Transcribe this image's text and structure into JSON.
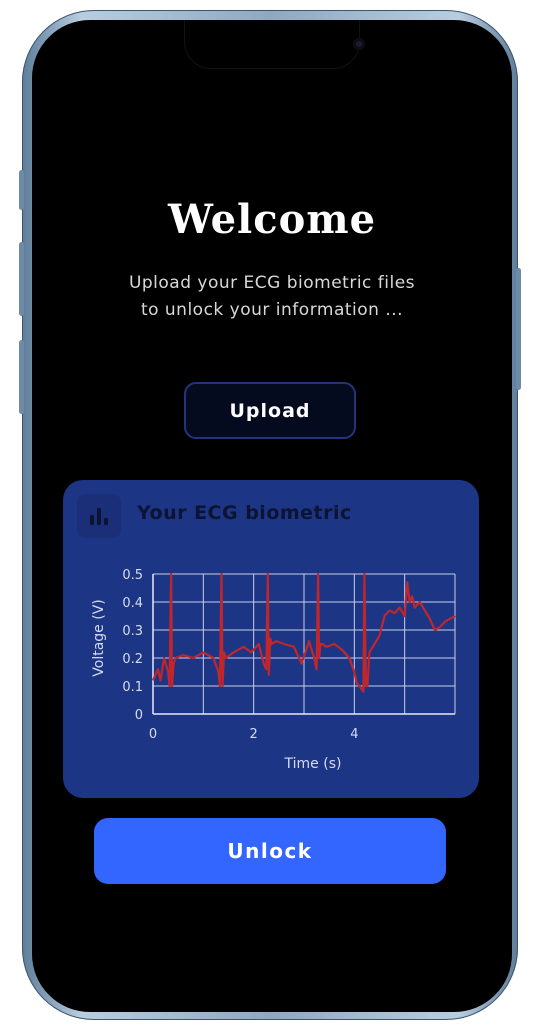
{
  "welcome": {
    "title": "Welcome",
    "subtitle_line1": "Upload your ECG biometric files",
    "subtitle_line2": "to unlock your information ..."
  },
  "buttons": {
    "upload_label": "Upload",
    "unlock_label": "Unlock"
  },
  "card": {
    "title": "Your ECG biometric",
    "icon": "bar-chart-icon"
  },
  "colors": {
    "background": "#000000",
    "card": "#1d3585",
    "unlock_button": "#3366ff",
    "ecg_line": "#c0262c"
  },
  "chart_data": {
    "type": "line",
    "xlabel": "Time (s)",
    "ylabel": "Voltage (V)",
    "xlim": [
      0,
      6
    ],
    "ylim": [
      0,
      0.5
    ],
    "xticks": [
      "0",
      "2",
      "4"
    ],
    "yticks": [
      "0",
      "0.1",
      "0.2",
      "0.3",
      "0.4",
      "0.5"
    ],
    "grid": true,
    "series": [
      {
        "x": [
          0,
          0.1,
          0.15,
          0.22,
          0.3,
          0.33,
          0.36,
          0.38,
          0.41,
          0.45,
          0.6,
          0.8,
          1.0,
          1.2,
          1.3,
          1.33,
          1.36,
          1.38,
          1.41,
          1.45,
          1.6,
          1.8,
          1.95,
          2.1,
          2.2,
          2.25,
          2.28,
          2.3,
          2.33,
          2.36,
          2.45,
          2.6,
          2.8,
          2.95,
          3.1,
          3.2,
          3.25,
          3.28,
          3.3,
          3.33,
          3.36,
          3.45,
          3.6,
          3.75,
          3.9,
          4.0,
          4.05,
          4.1,
          4.18,
          4.2,
          4.23,
          4.26,
          4.3,
          4.4,
          4.5,
          4.6,
          4.7,
          4.8,
          4.9,
          5.0,
          5.05,
          5.1,
          5.15,
          5.2,
          5.3,
          5.4,
          5.5,
          5.6,
          5.7,
          5.8,
          5.9,
          6.0
        ],
        "y": [
          0.12,
          0.16,
          0.12,
          0.2,
          0.15,
          0.1,
          0.5,
          0.1,
          0.18,
          0.2,
          0.21,
          0.2,
          0.22,
          0.2,
          0.15,
          0.1,
          0.5,
          0.1,
          0.22,
          0.2,
          0.22,
          0.24,
          0.22,
          0.25,
          0.18,
          0.16,
          0.5,
          0.14,
          0.27,
          0.25,
          0.26,
          0.25,
          0.24,
          0.18,
          0.26,
          0.2,
          0.16,
          0.5,
          0.2,
          0.25,
          0.25,
          0.24,
          0.25,
          0.23,
          0.2,
          0.15,
          0.11,
          0.1,
          0.08,
          0.5,
          0.1,
          0.1,
          0.22,
          0.25,
          0.28,
          0.35,
          0.37,
          0.36,
          0.38,
          0.35,
          0.47,
          0.4,
          0.42,
          0.38,
          0.4,
          0.37,
          0.34,
          0.3,
          0.31,
          0.33,
          0.34,
          0.35
        ]
      }
    ]
  }
}
